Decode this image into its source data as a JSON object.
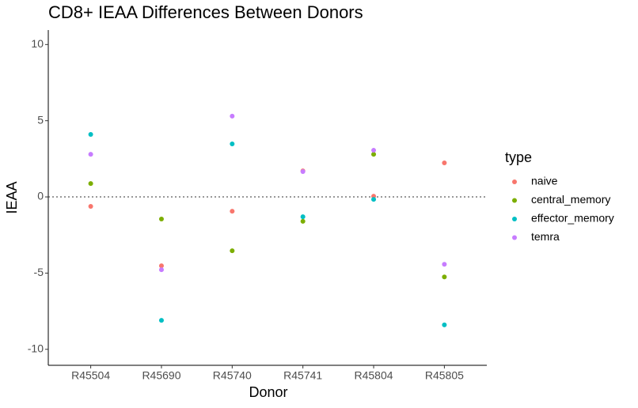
{
  "chart_data": {
    "type": "scatter",
    "title": "CD8+ IEAA Differences Between Donors",
    "x_label": "Donor",
    "y_label": "IEAA",
    "categories": [
      "R45504",
      "R45690",
      "R45740",
      "R45741",
      "R45804",
      "R45805"
    ],
    "series": [
      {
        "name": "naive",
        "color": "#F8766D",
        "values": [
          -0.62,
          -4.52,
          -0.94,
          1.71,
          0.05,
          2.23
        ]
      },
      {
        "name": "central_memory",
        "color": "#7CAE00",
        "values": [
          0.88,
          -1.45,
          -3.53,
          -1.6,
          2.8,
          -5.25
        ]
      },
      {
        "name": "effector_memory",
        "color": "#00BFC4",
        "values": [
          4.1,
          -8.1,
          3.48,
          -1.3,
          -0.16,
          -8.4
        ]
      },
      {
        "name": "temra",
        "color": "#C77CFF",
        "values": [
          2.8,
          -4.78,
          5.3,
          1.66,
          3.06,
          -4.42
        ]
      }
    ],
    "legend_title": "type",
    "legend": "right",
    "ylim": [
      -11.05,
      10.95
    ],
    "yticks": [
      -10,
      -5,
      0,
      5,
      10
    ],
    "hline": 0,
    "grid": false
  }
}
